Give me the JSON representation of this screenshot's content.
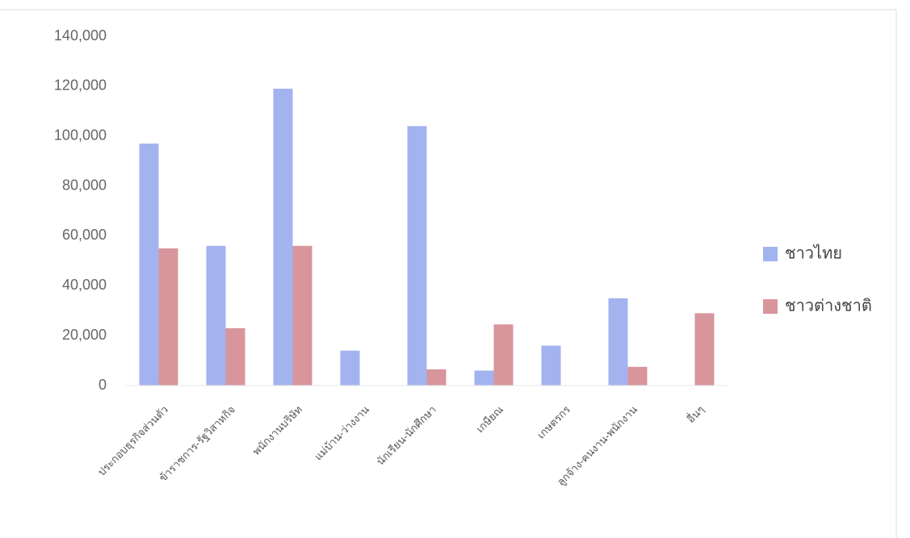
{
  "chart_data": {
    "type": "bar",
    "categories": [
      "ประกอบธุรกิจส่วนตัว",
      "ข้าราชการ-รัฐวิสาหกิจ",
      "พนักงานบริษัท",
      "แม่บ้าน-ว่างงาน",
      "นักเรียน-นักศึกษา",
      "เกษียณ",
      "เกษตรกร",
      "ลูกจ้าง-คนงาน-พนักงาน",
      "อื่นๆ"
    ],
    "series": [
      {
        "name": "ชาวไทย",
        "color": "#a3b3ef",
        "values": [
          97000,
          56000,
          119000,
          14000,
          104000,
          6000,
          16000,
          35000,
          0
        ]
      },
      {
        "name": "ชาวต่างชาติ",
        "color": "#d8959c",
        "values": [
          55000,
          23000,
          56000,
          0,
          6500,
          24500,
          0,
          7500,
          29000
        ]
      }
    ],
    "ylim": [
      0,
      140000
    ],
    "yticks": [
      0,
      {
        "value": 20000,
        "label": "20,000"
      },
      {
        "value": 40000,
        "label": "40,000"
      },
      {
        "value": 60000,
        "label": "60,000"
      },
      {
        "value": 80000,
        "label": "80,000"
      },
      {
        "value": 100000,
        "label": "100,000"
      },
      {
        "value": 120000,
        "label": "120,000"
      },
      {
        "value": 140000,
        "label": "140,000"
      }
    ],
    "grid": false,
    "legend": "right"
  }
}
